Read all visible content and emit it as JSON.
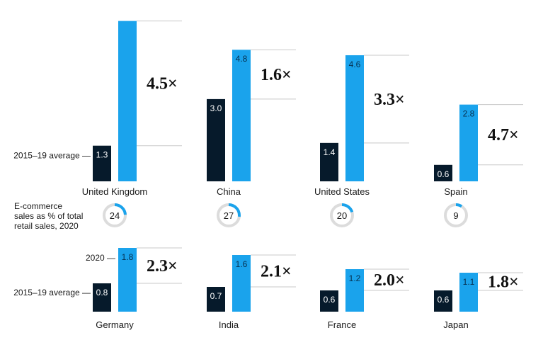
{
  "chart_data": {
    "type": "bar",
    "series": [
      {
        "name": "2015–19 average",
        "color": "#061a2b"
      },
      {
        "name": "2020",
        "color": "#1aa3ec"
      }
    ],
    "categories": [
      "United Kingdom",
      "China",
      "United States",
      "Spain",
      "Germany",
      "India",
      "France",
      "Japan"
    ],
    "countries": [
      {
        "name": "United Kingdom",
        "avg": "1.3",
        "y2020": "",
        "multiplier": "4.5×",
        "ecommerce_share": 24
      },
      {
        "name": "China",
        "avg": "3.0",
        "y2020": "4.8",
        "multiplier": "1.6×",
        "ecommerce_share": 27
      },
      {
        "name": "United States",
        "avg": "1.4",
        "y2020": "4.6",
        "multiplier": "3.3×",
        "ecommerce_share": 20
      },
      {
        "name": "Spain",
        "avg": "0.6",
        "y2020": "2.8",
        "multiplier": "4.7×",
        "ecommerce_share": 9
      },
      {
        "name": "Germany",
        "avg": "0.8",
        "y2020": "1.8",
        "multiplier": "2.3×"
      },
      {
        "name": "India",
        "avg": "0.7",
        "y2020": "1.6",
        "multiplier": "2.1×"
      },
      {
        "name": "France",
        "avg": "0.6",
        "y2020": "1.2",
        "multiplier": "2.0×"
      },
      {
        "name": "Japan",
        "avg": "0.6",
        "y2020": "1.1",
        "multiplier": "1.8×"
      }
    ],
    "labels": {
      "avg_label": "2015–19 average",
      "label_2020": "2020",
      "ecommerce_label": [
        "E-commerce",
        "sales as % of total",
        "retail sales, 2020"
      ]
    }
  }
}
